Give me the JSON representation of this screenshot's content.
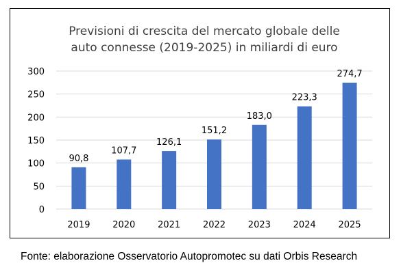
{
  "chart_data": {
    "type": "bar",
    "title_lines": [
      "Previsioni di crescita del mercato globale delle",
      "auto connesse (2019-2025) in miliardi di euro"
    ],
    "categories": [
      "2019",
      "2020",
      "2021",
      "2022",
      "2023",
      "2024",
      "2025"
    ],
    "values": [
      90.8,
      107.7,
      126.1,
      151.2,
      183.0,
      223.3,
      274.7
    ],
    "value_labels": [
      "90,8",
      "107,7",
      "126,1",
      "151,2",
      "183,0",
      "223,3",
      "274,7"
    ],
    "ylim": [
      0,
      300
    ],
    "yticks": [
      0,
      50,
      100,
      150,
      200,
      250,
      300
    ],
    "ytick_labels": [
      "0",
      "50",
      "100",
      "150",
      "200",
      "250",
      "300"
    ],
    "grid": true,
    "legend": "none",
    "bar_color": "#4472C4",
    "grid_color": "#D9D9D9"
  },
  "caption": "Fonte: elaborazione Osservatorio Autopromotec su dati Orbis Research"
}
